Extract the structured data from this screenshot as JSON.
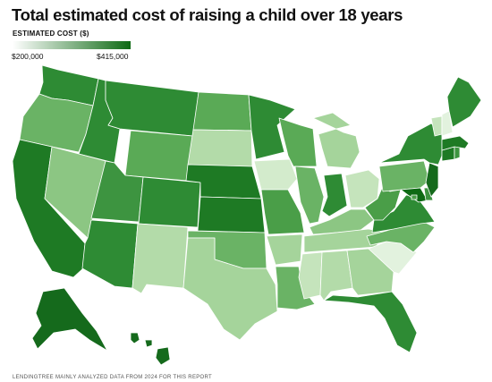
{
  "title": "Total estimated cost of raising a child over 18 years",
  "legend": {
    "title": "ESTIMATED COST ($)",
    "min_label": "$200,000",
    "max_label": "$415,000",
    "min_color": "#ffffff",
    "max_color": "#0e6a14"
  },
  "footnote": "LENDINGTREE MAINLY ANALYZED DATA FROM 2024 FOR THIS REPORT",
  "states": {
    "WA": "#2e8b34",
    "OR": "#6ab365",
    "CA": "#1e7a24",
    "ID": "#2e8b34",
    "NV": "#8cc683",
    "MT": "#2e8b34",
    "WY": "#5aaa56",
    "UT": "#3d9440",
    "AZ": "#2e8b34",
    "CO": "#2e8b34",
    "NM": "#b3dba9",
    "ND": "#5aaa56",
    "SD": "#b3dba9",
    "NE": "#1e7a24",
    "KS": "#1e7a24",
    "OK": "#6ab365",
    "TX": "#a5d49b",
    "MN": "#2e8b34",
    "IA": "#d3ebcc",
    "MO": "#4a9e48",
    "AR": "#a5d49b",
    "LA": "#6ab365",
    "WI": "#5aaa56",
    "IL": "#6ab365",
    "MI": "#a5d49b",
    "IN": "#2e8b34",
    "OH": "#c5e4bc",
    "KY": "#8cc683",
    "TN": "#a5d49b",
    "MS": "#c5e4bc",
    "AL": "#b3dba9",
    "GA": "#a5d49b",
    "FL": "#2e8b34",
    "SC": "#e2f2de",
    "NC": "#6ab365",
    "VA": "#2e8b34",
    "WV": "#4a9e48",
    "PA": "#6ab365",
    "NY": "#2e8b34",
    "VT": "#c5e4bc",
    "NH": "#e2f2de",
    "ME": "#2e8b34",
    "MA": "#1e7a24",
    "CT": "#1e7a24",
    "RI": "#3d9440",
    "NJ": "#156a1c",
    "DE": "#3d9440",
    "MD": "#0e6a14",
    "DC": "#4a9e48",
    "AK": "#156a1c",
    "HI": "#156a1c"
  }
}
